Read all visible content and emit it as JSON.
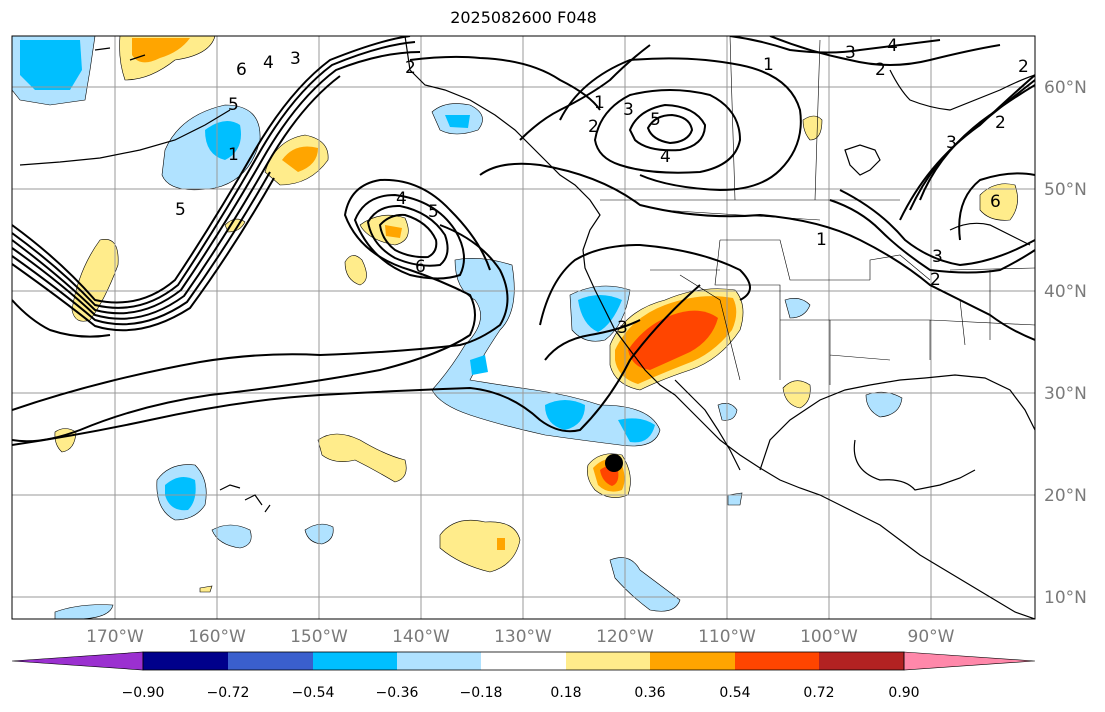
{
  "title": "2025082600 F048",
  "lon_ticks": [
    "170°W",
    "160°W",
    "150°W",
    "140°W",
    "130°W",
    "120°W",
    "110°W",
    "100°W",
    "90°W"
  ],
  "lat_ticks": [
    "60°N",
    "50°N",
    "40°N",
    "30°N",
    "20°N",
    "10°N"
  ],
  "colorbar": {
    "labels": [
      "−0.90",
      "−0.72",
      "−0.54",
      "−0.36",
      "−0.18",
      "0.18",
      "0.36",
      "0.54",
      "0.72",
      "0.90"
    ],
    "colors": [
      "#9b30d0",
      "#00008b",
      "#3a5fcd",
      "#00bfff",
      "#b0e2ff",
      "#ffffff",
      "#ffec8b",
      "#ffa500",
      "#ff4500",
      "#b22222",
      "#ff88aa"
    ]
  },
  "contour_labels": [
    "6",
    "4",
    "3",
    "2",
    "5",
    "4",
    "5",
    "6",
    "1",
    "2",
    "3",
    "5",
    "4",
    "1",
    "3",
    "4",
    "2",
    "1",
    "3",
    "2",
    "5",
    "3",
    "2",
    "6",
    "1",
    "2",
    "3"
  ],
  "marker": "storm center dot",
  "colors": {
    "contour": "#000000",
    "grid": "#999999",
    "tick": "#7a7a7a"
  }
}
